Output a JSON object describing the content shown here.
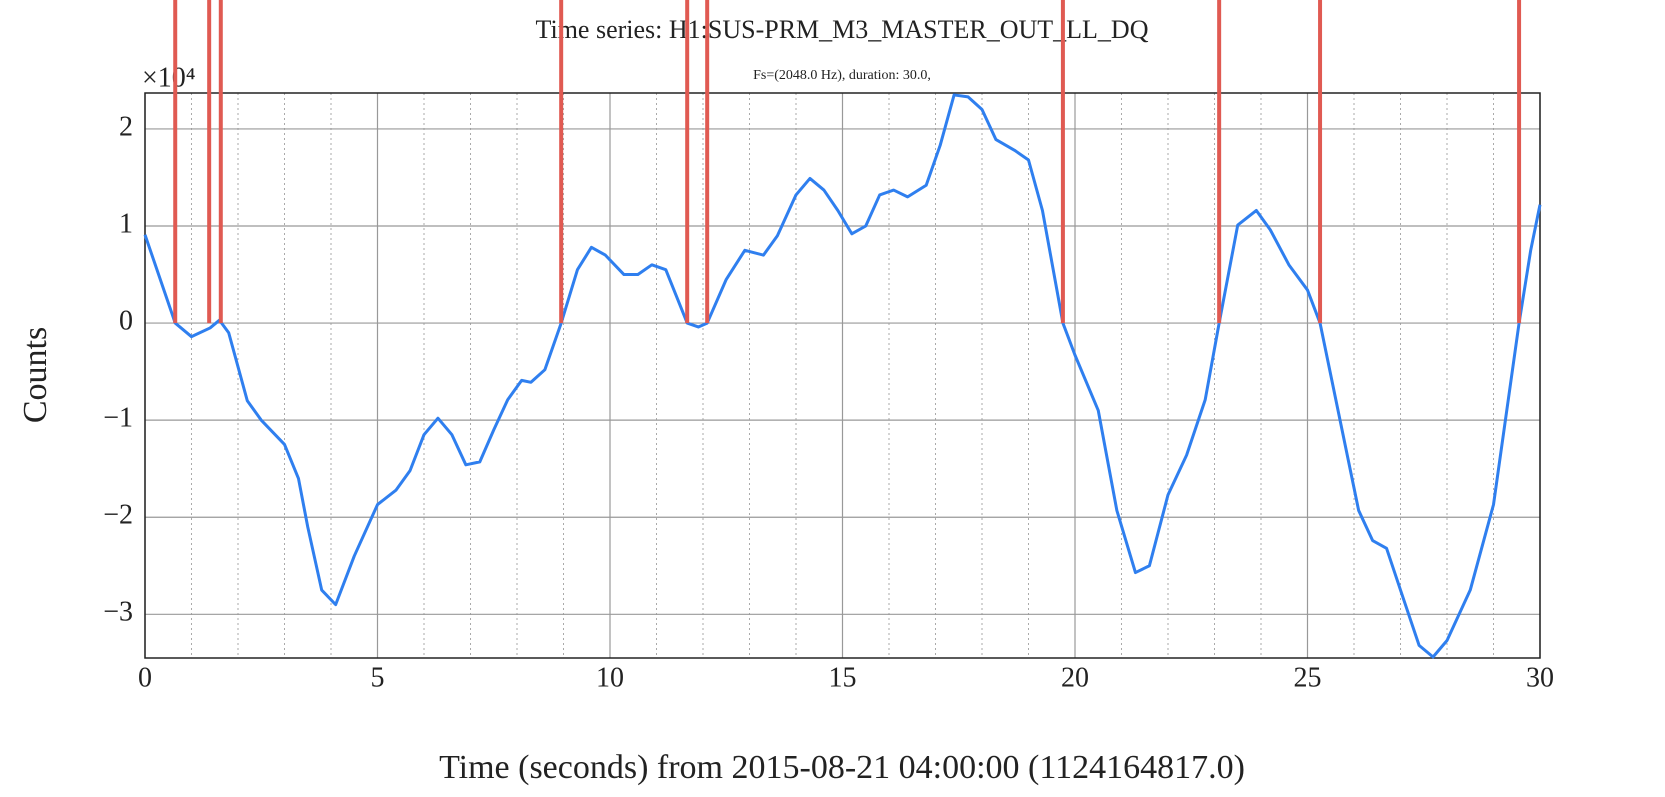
{
  "chart_data": {
    "type": "line",
    "title": "Time series:  H1:SUS-PRM_M3_MASTER_OUT_LL_DQ",
    "subtitle": "Fs=(2048.0 Hz), duration: 30.0,",
    "x_label": "Time (seconds) from 2015-08-21 04:00:00 (1124164817.0)",
    "y_label": "Counts",
    "y_offset_label": "×10⁴",
    "xlim": [
      0,
      30
    ],
    "ylim": [
      -3.45,
      2.37
    ],
    "xticks": [
      0,
      5,
      10,
      15,
      20,
      25,
      30
    ],
    "xminorticks": [
      1,
      2,
      3,
      4,
      6,
      7,
      8,
      9,
      11,
      12,
      13,
      14,
      16,
      17,
      18,
      19,
      21,
      22,
      23,
      24,
      26,
      27,
      28,
      29
    ],
    "yticks": [
      {
        "value": -3,
        "label": "−3"
      },
      {
        "value": -2,
        "label": "−2"
      },
      {
        "value": -1,
        "label": "−1"
      },
      0,
      1,
      2
    ],
    "grid": true,
    "series": [
      {
        "color": "#2f7fef",
        "x": [
          0,
          0.65,
          1.0,
          1.4,
          1.6,
          1.8,
          2.2,
          2.5,
          3.0,
          3.3,
          3.5,
          3.8,
          4.1,
          4.5,
          5.0,
          5.4,
          5.7,
          6.0,
          6.3,
          6.6,
          6.9,
          7.2,
          7.5,
          7.8,
          8.1,
          8.3,
          8.6,
          8.95,
          9.3,
          9.6,
          9.9,
          10.3,
          10.6,
          10.9,
          11.2,
          11.66,
          11.9,
          12.09,
          12.5,
          12.9,
          13.3,
          13.6,
          14.0,
          14.3,
          14.6,
          14.9,
          15.2,
          15.5,
          15.8,
          16.1,
          16.4,
          16.8,
          17.1,
          17.4,
          17.7,
          18.0,
          18.3,
          18.7,
          19.0,
          19.3,
          19.74,
          20.0,
          20.5,
          20.9,
          21.3,
          21.6,
          22.0,
          22.4,
          22.8,
          23.1,
          23.5,
          23.9,
          24.2,
          24.6,
          25.0,
          25.27,
          25.7,
          26.1,
          26.4,
          26.7,
          27.0,
          27.4,
          27.7,
          28.0,
          28.5,
          29.0,
          29.55,
          29.8,
          30
        ],
        "values": [
          0.91,
          0,
          -0.14,
          -0.05,
          0.03,
          -0.1,
          -0.8,
          -1.0,
          -1.25,
          -1.6,
          -2.1,
          -2.75,
          -2.9,
          -2.4,
          -1.87,
          -1.72,
          -1.52,
          -1.15,
          -0.98,
          -1.15,
          -1.46,
          -1.43,
          -1.1,
          -0.79,
          -0.59,
          -0.61,
          -0.48,
          0,
          0.55,
          0.78,
          0.7,
          0.5,
          0.5,
          0.6,
          0.55,
          0,
          -0.04,
          0,
          0.45,
          0.75,
          0.7,
          0.9,
          1.32,
          1.49,
          1.37,
          1.16,
          0.92,
          1.0,
          1.32,
          1.37,
          1.3,
          1.42,
          1.83,
          2.35,
          2.33,
          2.2,
          1.89,
          1.78,
          1.68,
          1.16,
          0,
          -0.33,
          -0.9,
          -1.93,
          -2.57,
          -2.5,
          -1.77,
          -1.36,
          -0.79,
          0,
          1.01,
          1.16,
          0.96,
          0.6,
          0.34,
          0,
          -1.0,
          -1.93,
          -2.24,
          -2.32,
          -2.75,
          -3.32,
          -3.44,
          -3.27,
          -2.75,
          -1.87,
          0,
          0.75,
          1.22
        ]
      }
    ],
    "markers": {
      "color": "#e05a52",
      "x": [
        0.65,
        1.38,
        1.63,
        8.95,
        11.66,
        12.09,
        19.74,
        23.1,
        25.27,
        29.55
      ]
    }
  }
}
